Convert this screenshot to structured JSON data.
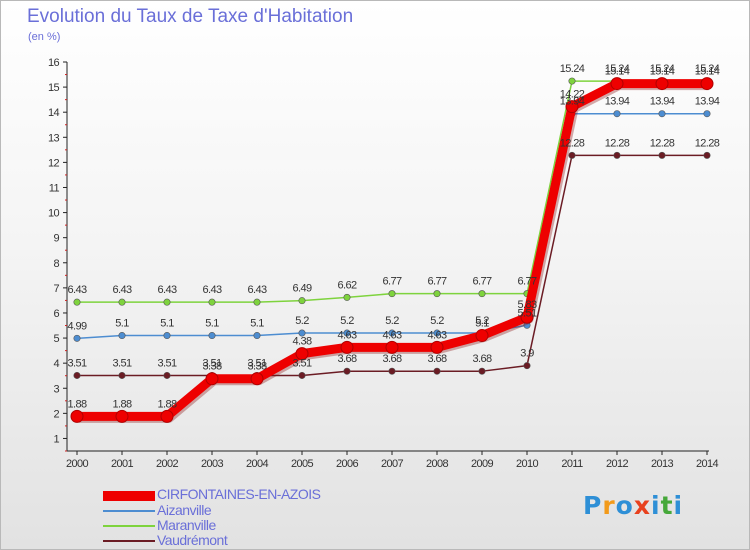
{
  "title": "Evolution du Taux de Taxe d'Habitation",
  "subtitle": "(en %)",
  "logo": {
    "text": "Proxiti",
    "colors": [
      "#2e8fd6",
      "#f29a1a",
      "#2e8fd6",
      "#e8411e",
      "#2e8fd6",
      "#46a83a",
      "#2e8fd6"
    ]
  },
  "chart_data": {
    "type": "line",
    "x": [
      2000,
      2001,
      2002,
      2003,
      2004,
      2005,
      2006,
      2007,
      2008,
      2009,
      2010,
      2011,
      2012,
      2013,
      2014
    ],
    "ylim": [
      0.5,
      16
    ],
    "yticks": [
      1,
      2,
      3,
      4,
      5,
      6,
      7,
      8,
      9,
      10,
      11,
      12,
      13,
      14,
      15,
      16
    ],
    "grid": false,
    "legend_position": "bottom-left",
    "series": [
      {
        "name": "CIRFONTAINES-EN-AZOIS",
        "color": "#ee0000",
        "values": [
          1.88,
          1.88,
          1.88,
          3.38,
          3.38,
          4.38,
          4.63,
          4.63,
          4.63,
          5.1,
          5.83,
          14.22,
          15.14,
          15.14,
          15.14
        ],
        "labels": [
          "1.88",
          "1.88",
          "1.88",
          "3.38",
          "3.38",
          "4.38",
          "4.63",
          "4.63",
          "4.63",
          "5.1",
          "5.83",
          "14.22",
          "15.14",
          "15.14",
          "15.14"
        ]
      },
      {
        "name": "Aizanville",
        "color": "#4d8dd1",
        "values": [
          4.99,
          5.1,
          5.1,
          5.1,
          5.1,
          5.2,
          5.2,
          5.2,
          5.2,
          5.2,
          5.51,
          13.94,
          13.94,
          13.94,
          13.94
        ],
        "labels": [
          "4.99",
          "5.1",
          "5.1",
          "5.1",
          "5.1",
          "5.2",
          "5.2",
          "5.2",
          "5.2",
          "5.2",
          "5.51",
          "13.94",
          "13.94",
          "13.94",
          "13.94"
        ]
      },
      {
        "name": "Maranville",
        "color": "#7ed33d",
        "values": [
          6.43,
          6.43,
          6.43,
          6.43,
          6.43,
          6.49,
          6.62,
          6.77,
          6.77,
          6.77,
          6.77,
          15.24,
          15.24,
          15.24,
          15.24
        ],
        "labels": [
          "6.43",
          "6.43",
          "6.43",
          "6.43",
          "6.43",
          "6.49",
          "6.62",
          "6.77",
          "6.77",
          "6.77",
          "6.77",
          "15.24",
          "15.24",
          "15.24",
          "15.24"
        ]
      },
      {
        "name": "Vaudrémont",
        "color": "#6b1c24",
        "values": [
          3.51,
          3.51,
          3.51,
          3.51,
          3.51,
          3.51,
          3.68,
          3.68,
          3.68,
          3.68,
          3.9,
          12.28,
          12.28,
          12.28,
          12.28
        ],
        "labels": [
          "3.51",
          "3.51",
          "3.51",
          "3.51",
          "3.51",
          "3.51",
          "3.68",
          "3.68",
          "3.68",
          "3.68",
          "3.9",
          "12.28",
          "12.28",
          "12.28",
          "12.28"
        ]
      }
    ]
  }
}
